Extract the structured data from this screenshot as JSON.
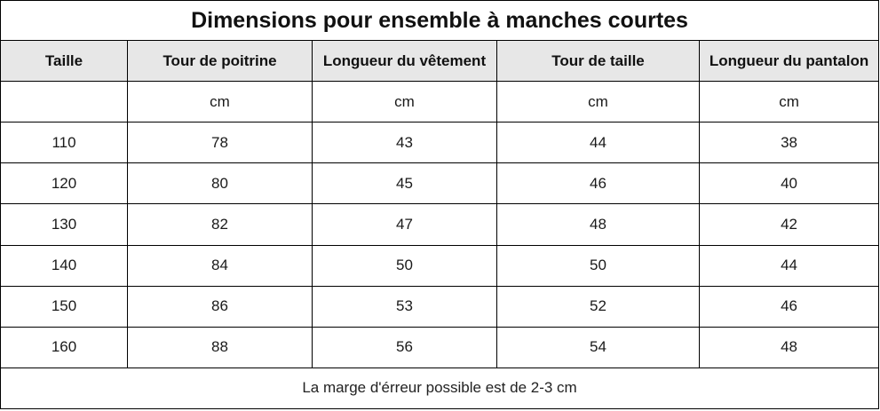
{
  "table": {
    "title": "Dimensions pour ensemble à manches courtes",
    "headers": [
      "Taille",
      "Tour de poitrine",
      "Longueur du vêtement",
      "Tour de taille",
      "Longueur du pantalon"
    ],
    "units": [
      "",
      "cm",
      "cm",
      "cm",
      "cm"
    ],
    "rows": [
      [
        "110",
        "78",
        "43",
        "44",
        "38"
      ],
      [
        "120",
        "80",
        "45",
        "46",
        "40"
      ],
      [
        "130",
        "82",
        "47",
        "48",
        "42"
      ],
      [
        "140",
        "84",
        "50",
        "50",
        "44"
      ],
      [
        "150",
        "86",
        "53",
        "52",
        "46"
      ],
      [
        "160",
        "88",
        "56",
        "54",
        "48"
      ]
    ],
    "note": "La marge d'érreur possible est de 2-3 cm"
  },
  "colors": {
    "header_background": "#e7e7e7",
    "border": "#000000",
    "text": "#1a1a1a"
  }
}
